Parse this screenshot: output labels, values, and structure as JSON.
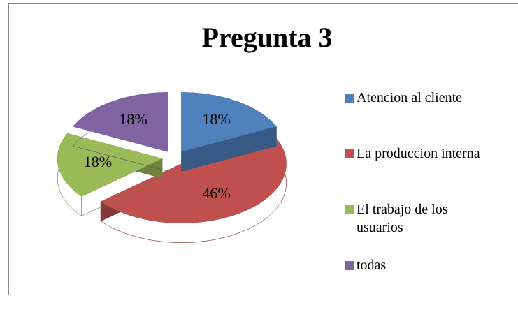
{
  "chart_data": {
    "type": "pie",
    "title": "Pregunta 3",
    "categories": [
      "Atencion al cliente",
      "La produccion interna",
      "El trabajo de los usuarios",
      "todas"
    ],
    "values": [
      18,
      46,
      18,
      18
    ],
    "value_labels": [
      "18%",
      "46%",
      "18%",
      "18%"
    ],
    "colors": [
      "#4f81bd",
      "#c0504d",
      "#9bbb59",
      "#8064a2"
    ],
    "legend": "right"
  }
}
